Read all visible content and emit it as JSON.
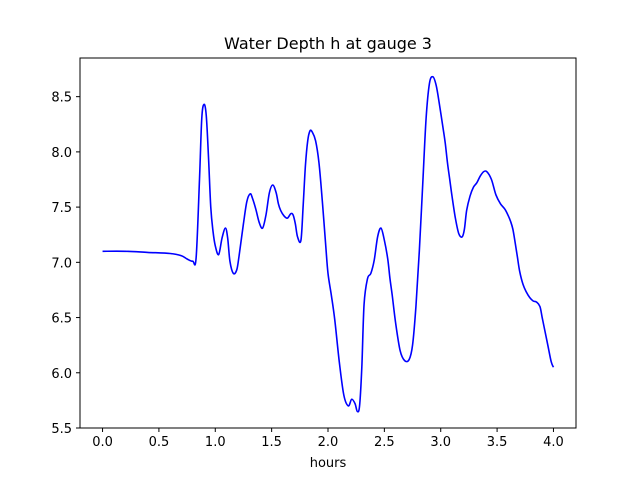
{
  "chart_data": {
    "type": "line",
    "title": "Water Depth h at gauge 3",
    "xlabel": "hours",
    "ylabel": "",
    "xlim": [
      -0.2,
      4.2
    ],
    "ylim": [
      5.5,
      8.85
    ],
    "xticks": [
      0.0,
      0.5,
      1.0,
      1.5,
      2.0,
      2.5,
      3.0,
      3.5,
      4.0
    ],
    "xtick_labels": [
      "0.0",
      "0.5",
      "1.0",
      "1.5",
      "2.0",
      "2.5",
      "3.0",
      "3.5",
      "4.0"
    ],
    "yticks": [
      5.5,
      6.0,
      6.5,
      7.0,
      7.5,
      8.0,
      8.5
    ],
    "ytick_labels": [
      "5.5",
      "6.0",
      "6.5",
      "7.0",
      "7.5",
      "8.0",
      "8.5"
    ],
    "grid": false,
    "series": [
      {
        "name": "",
        "color": "#0000ff",
        "x": [
          0.0,
          0.2,
          0.4,
          0.6,
          0.7,
          0.75,
          0.8,
          0.83,
          0.86,
          0.88,
          0.9,
          0.92,
          0.94,
          0.96,
          0.98,
          1.0,
          1.03,
          1.06,
          1.09,
          1.11,
          1.13,
          1.16,
          1.19,
          1.21,
          1.25,
          1.28,
          1.31,
          1.33,
          1.36,
          1.39,
          1.42,
          1.45,
          1.48,
          1.51,
          1.54,
          1.56,
          1.58,
          1.61,
          1.64,
          1.67,
          1.69,
          1.71,
          1.73,
          1.76,
          1.78,
          1.8,
          1.82,
          1.84,
          1.86,
          1.89,
          1.92,
          1.95,
          1.98,
          2.0,
          2.03,
          2.06,
          2.1,
          2.14,
          2.18,
          2.21,
          2.24,
          2.26,
          2.28,
          2.3,
          2.32,
          2.35,
          2.38,
          2.41,
          2.44,
          2.47,
          2.5,
          2.53,
          2.55,
          2.57,
          2.6,
          2.64,
          2.68,
          2.72,
          2.75,
          2.78,
          2.81,
          2.84,
          2.87,
          2.9,
          2.93,
          2.96,
          2.99,
          3.02,
          3.04,
          3.06,
          3.08,
          3.1,
          3.13,
          3.16,
          3.19,
          3.21,
          3.23,
          3.26,
          3.29,
          3.32,
          3.35,
          3.38,
          3.41,
          3.45,
          3.49,
          3.53,
          3.57,
          3.6,
          3.62,
          3.64,
          3.66,
          3.68,
          3.7,
          3.73,
          3.76,
          3.79,
          3.82,
          3.85,
          3.88,
          3.9,
          3.92,
          3.95,
          3.98,
          4.0
        ],
        "y": [
          7.1,
          7.1,
          7.09,
          7.08,
          7.06,
          7.03,
          7.01,
          7.04,
          7.75,
          8.3,
          8.43,
          8.33,
          7.95,
          7.5,
          7.28,
          7.15,
          7.07,
          7.22,
          7.31,
          7.22,
          7.01,
          6.9,
          6.93,
          7.05,
          7.35,
          7.55,
          7.62,
          7.58,
          7.48,
          7.36,
          7.31,
          7.43,
          7.63,
          7.7,
          7.63,
          7.53,
          7.47,
          7.42,
          7.4,
          7.44,
          7.43,
          7.35,
          7.23,
          7.2,
          7.52,
          7.88,
          8.1,
          8.19,
          8.18,
          8.1,
          7.9,
          7.55,
          7.15,
          6.9,
          6.7,
          6.48,
          6.1,
          5.8,
          5.7,
          5.76,
          5.72,
          5.65,
          5.7,
          6.05,
          6.62,
          6.85,
          6.9,
          7.02,
          7.23,
          7.31,
          7.2,
          7.03,
          6.85,
          6.7,
          6.45,
          6.2,
          6.11,
          6.12,
          6.25,
          6.6,
          7.1,
          7.7,
          8.3,
          8.62,
          8.68,
          8.6,
          8.42,
          8.22,
          8.08,
          7.9,
          7.75,
          7.6,
          7.4,
          7.26,
          7.23,
          7.3,
          7.47,
          7.6,
          7.68,
          7.72,
          7.78,
          7.82,
          7.82,
          7.75,
          7.61,
          7.53,
          7.48,
          7.42,
          7.37,
          7.3,
          7.18,
          7.05,
          6.92,
          6.8,
          6.73,
          6.68,
          6.65,
          6.64,
          6.6,
          6.5,
          6.4,
          6.25,
          6.1,
          6.05
        ]
      }
    ]
  }
}
